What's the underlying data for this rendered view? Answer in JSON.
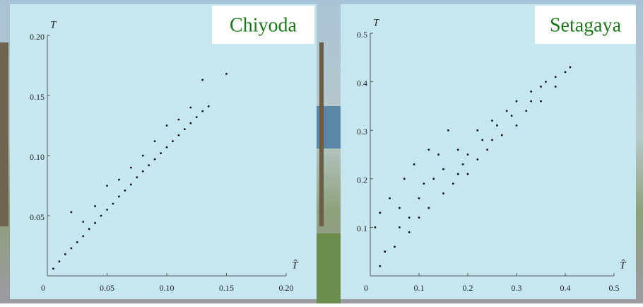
{
  "chart_data": [
    {
      "type": "scatter",
      "title": "Chiyoda",
      "xlabel": "T̂",
      "ylabel": "T",
      "color": "#111111",
      "xlim": [
        0,
        0.2
      ],
      "ylim": [
        0,
        0.2
      ],
      "xticks": [
        0,
        0.05,
        {
          "value": 0.1,
          "label": "0.10"
        },
        0.15,
        {
          "value": 0.2,
          "label": "0.20"
        }
      ],
      "yticks": [
        0.05,
        {
          "value": 0.1,
          "label": "0.10"
        },
        0.15,
        {
          "value": 0.2,
          "label": "0.20"
        }
      ],
      "x": [
        0.005,
        0.01,
        0.015,
        0.02,
        0.025,
        0.03,
        0.035,
        0.04,
        0.045,
        0.05,
        0.055,
        0.06,
        0.065,
        0.07,
        0.075,
        0.08,
        0.085,
        0.09,
        0.095,
        0.1,
        0.105,
        0.11,
        0.115,
        0.12,
        0.125,
        0.13,
        0.135,
        0.02,
        0.05,
        0.07,
        0.09,
        0.1,
        0.13,
        0.15,
        0.03,
        0.06,
        0.08,
        0.11,
        0.04,
        0.12
      ],
      "values": [
        0.006,
        0.012,
        0.018,
        0.023,
        0.028,
        0.033,
        0.039,
        0.044,
        0.05,
        0.055,
        0.06,
        0.066,
        0.071,
        0.076,
        0.082,
        0.087,
        0.092,
        0.097,
        0.102,
        0.107,
        0.112,
        0.117,
        0.122,
        0.127,
        0.132,
        0.137,
        0.141,
        0.053,
        0.075,
        0.09,
        0.112,
        0.125,
        0.163,
        0.168,
        0.045,
        0.08,
        0.1,
        0.13,
        0.058,
        0.14
      ]
    },
    {
      "type": "scatter",
      "title": "Setagaya",
      "xlabel": "T̂",
      "ylabel": "T",
      "color": "#111111",
      "xlim": [
        0,
        0.5
      ],
      "ylim": [
        0,
        0.5
      ],
      "xticks": [
        0,
        0.1,
        0.2,
        0.3,
        0.4,
        0.5
      ],
      "yticks": [
        0.1,
        0.2,
        0.3,
        0.4,
        0.5
      ],
      "x": [
        0.02,
        0.03,
        0.05,
        0.06,
        0.08,
        0.1,
        0.1,
        0.12,
        0.13,
        0.15,
        0.15,
        0.17,
        0.18,
        0.2,
        0.2,
        0.22,
        0.22,
        0.24,
        0.25,
        0.27,
        0.28,
        0.3,
        0.3,
        0.32,
        0.33,
        0.35,
        0.36,
        0.38,
        0.4,
        0.41,
        0.01,
        0.02,
        0.04,
        0.07,
        0.09,
        0.12,
        0.16,
        0.14,
        0.06,
        0.11,
        0.19,
        0.23,
        0.26,
        0.29,
        0.33,
        0.08,
        0.18,
        0.25,
        0.35,
        0.38
      ],
      "values": [
        0.02,
        0.05,
        0.06,
        0.1,
        0.09,
        0.12,
        0.16,
        0.14,
        0.2,
        0.17,
        0.22,
        0.19,
        0.26,
        0.21,
        0.25,
        0.24,
        0.3,
        0.26,
        0.32,
        0.29,
        0.34,
        0.31,
        0.36,
        0.34,
        0.38,
        0.36,
        0.4,
        0.39,
        0.42,
        0.43,
        0.1,
        0.13,
        0.16,
        0.2,
        0.23,
        0.26,
        0.3,
        0.25,
        0.14,
        0.19,
        0.23,
        0.28,
        0.31,
        0.33,
        0.36,
        0.12,
        0.21,
        0.28,
        0.39,
        0.41
      ]
    }
  ]
}
